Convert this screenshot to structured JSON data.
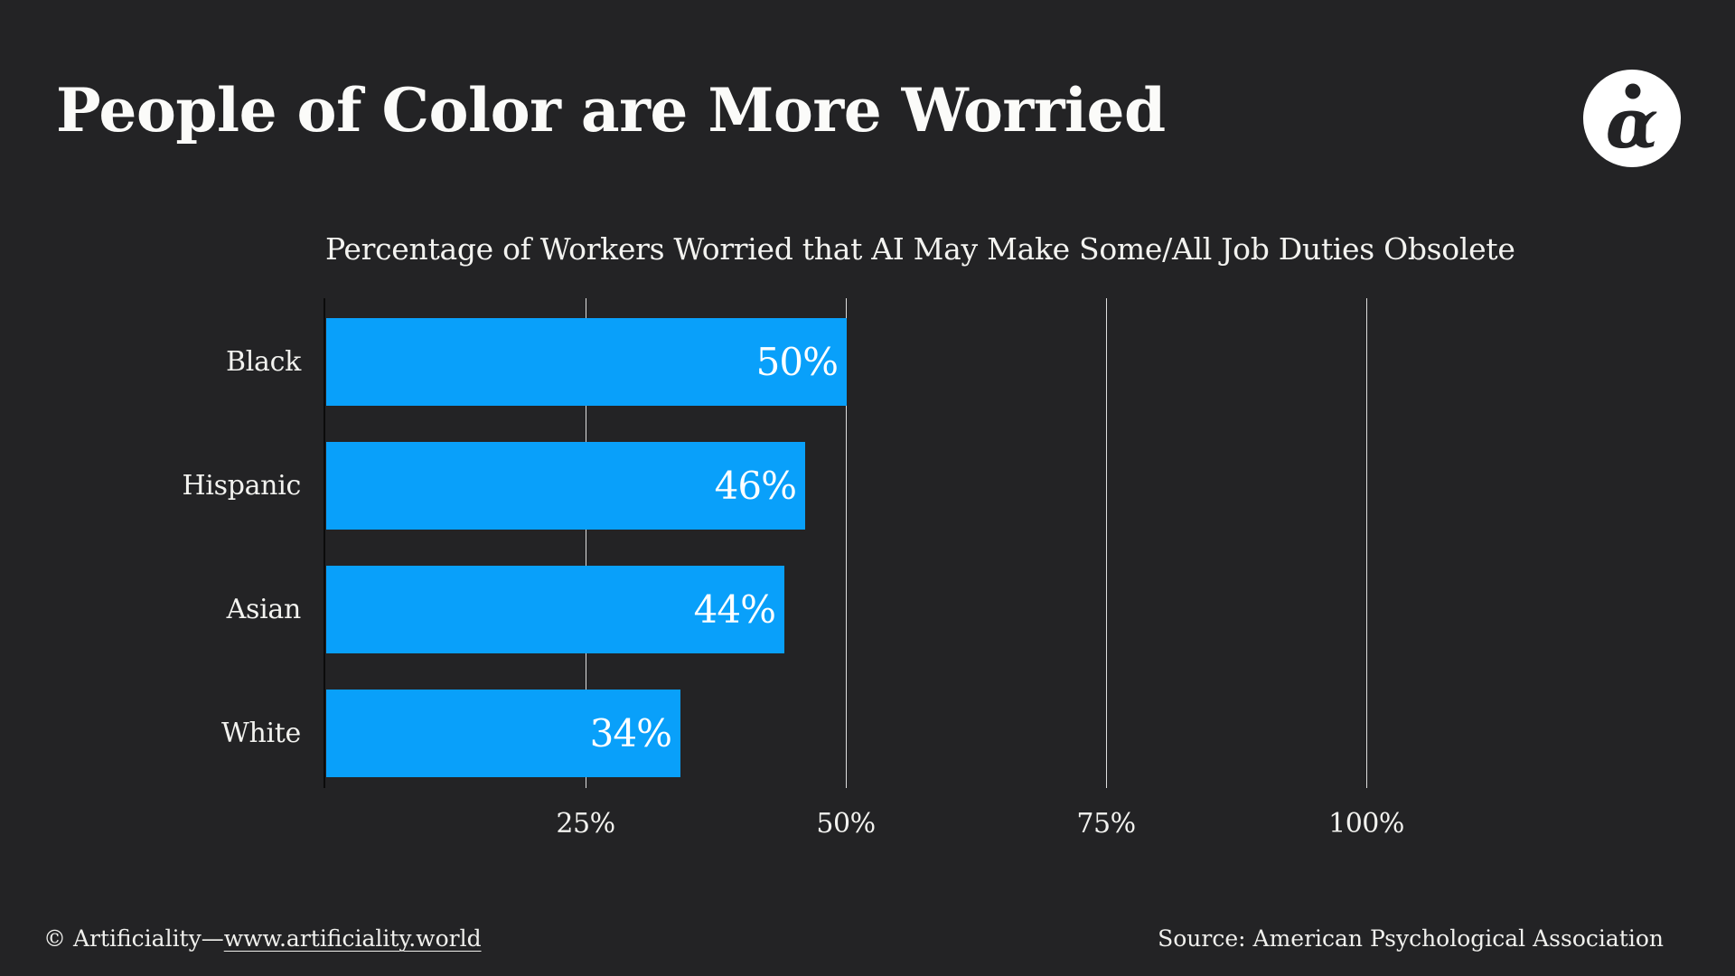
{
  "header": {
    "title": "People of Color are More Worried",
    "logo_glyph": "ɑ"
  },
  "chart_data": {
    "type": "bar",
    "orientation": "horizontal",
    "title": "People of Color are More Worried",
    "subtitle": "Percentage of Workers Worried that AI May Make Some/All Job Duties Obsolete",
    "categories": [
      "Black",
      "Hispanic",
      "Asian",
      "White"
    ],
    "values": [
      50,
      46,
      44,
      34
    ],
    "value_labels": [
      "50%",
      "46%",
      "44%",
      "34%"
    ],
    "x_ticks": [
      25,
      50,
      75,
      100
    ],
    "x_tick_labels": [
      "25%",
      "50%",
      "75%",
      "100%"
    ],
    "xlim": [
      0,
      100
    ],
    "grid": true,
    "legend": "none",
    "bar_color": "#09A0FA",
    "background_color": "#232325",
    "gridline_color": "#ffffff",
    "axis_line_color": "#0b0b0b",
    "label_color": "#ffffff"
  },
  "footer": {
    "copyright": "© Artificiality—",
    "link": "www.artificiality.world",
    "source": "Source: American Psychological Association"
  }
}
